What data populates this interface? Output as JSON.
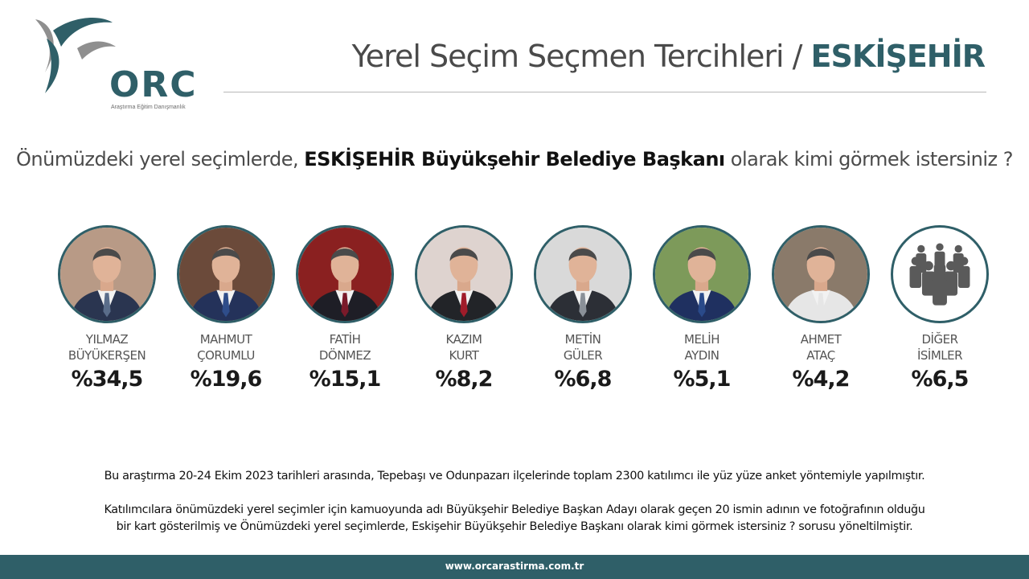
{
  "brand": {
    "logo_text": "ORC",
    "logo_subtext": "Araştırma Eğitim Danışmanlık",
    "footer_url": "www.orcarastirma.com.tr",
    "color_primary": "#2f5f68"
  },
  "header": {
    "title_prefix": "Yerel Seçim Seçmen Tercihleri /",
    "title_city": "ESKİŞEHİR"
  },
  "question": {
    "prefix": "Önümüzdeki yerel seçimlerde,",
    "bold": "ESKİŞEHİR Büyükşehir Belediye Başkanı",
    "suffix": "olarak kimi görmek istersiniz ?"
  },
  "chart_data": {
    "type": "bar",
    "unit": "%",
    "categories": [
      "YILMAZ BÜYÜKERŞEN",
      "MAHMUT ÇORUMLU",
      "FATİH DÖNMEZ",
      "KAZIM KURT",
      "METİN GÜLER",
      "MELİH AYDIN",
      "AHMET ATAÇ",
      "DİĞER İSİMLER"
    ],
    "values": [
      34.5,
      19.6,
      15.1,
      8.2,
      6.8,
      5.1,
      4.2,
      6.5
    ],
    "items": [
      {
        "first": "YILMAZ",
        "last": "BÜYÜKERŞEN",
        "value_label": "%34,5",
        "icon": "portrait-photo",
        "bg": "#b89a86",
        "suit": "#2a3550",
        "tie": "#5a6d8a"
      },
      {
        "first": "MAHMUT",
        "last": "ÇORUMLU",
        "value_label": "%19,6",
        "icon": "portrait-photo",
        "bg": "#6b4a3a",
        "suit": "#24325a",
        "tie": "#2f4d8a"
      },
      {
        "first": "FATİH",
        "last": "DÖNMEZ",
        "value_label": "%15,1",
        "icon": "portrait-photo",
        "bg": "#8a2020",
        "suit": "#1e1e26",
        "tie": "#7a1a2a"
      },
      {
        "first": "KAZIM",
        "last": "KURT",
        "value_label": "%8,2",
        "icon": "portrait-photo",
        "bg": "#ded3cf",
        "suit": "#222428",
        "tie": "#a01c2a"
      },
      {
        "first": "METİN",
        "last": "GÜLER",
        "value_label": "%6,8",
        "icon": "portrait-photo",
        "bg": "#d9d9d9",
        "suit": "#2c2f36",
        "tie": "#8a9098"
      },
      {
        "first": "MELİH",
        "last": "AYDIN",
        "value_label": "%5,1",
        "icon": "portrait-photo",
        "bg": "#7d9a5a",
        "suit": "#1f3060",
        "tie": "#2a4a8a"
      },
      {
        "first": "AHMET",
        "last": "ATAÇ",
        "value_label": "%4,2",
        "icon": "portrait-photo",
        "bg": "#8a7a6a",
        "suit": "#e6e6e6",
        "tie": "#e6e6e6"
      },
      {
        "first": "DİĞER",
        "last": "İSİMLER",
        "value_label": "%6,5",
        "icon": "people-group-icon",
        "bg": "#ffffff",
        "suit": "#5a5a5a",
        "tie": "#5a5a5a"
      }
    ]
  },
  "notes": {
    "line1": "Bu araştırma 20-24 Ekim 2023 tarihleri arasında, Tepebaşı ve Odunpazarı ilçelerinde toplam 2300 katılımcı ile yüz yüze anket yöntemiyle yapılmıştır.",
    "line2": "Katılımcılara önümüzdeki yerel seçimler için kamuoyunda adı Büyükşehir Belediye Başkan Adayı olarak geçen 20 ismin adının ve fotoğrafının olduğu",
    "line3": "bir kart gösterilmiş ve Önümüzdeki yerel seçimlerde, Eskişehir Büyükşehir Belediye Başkanı olarak kimi görmek istersiniz ? sorusu yöneltilmiştir."
  }
}
